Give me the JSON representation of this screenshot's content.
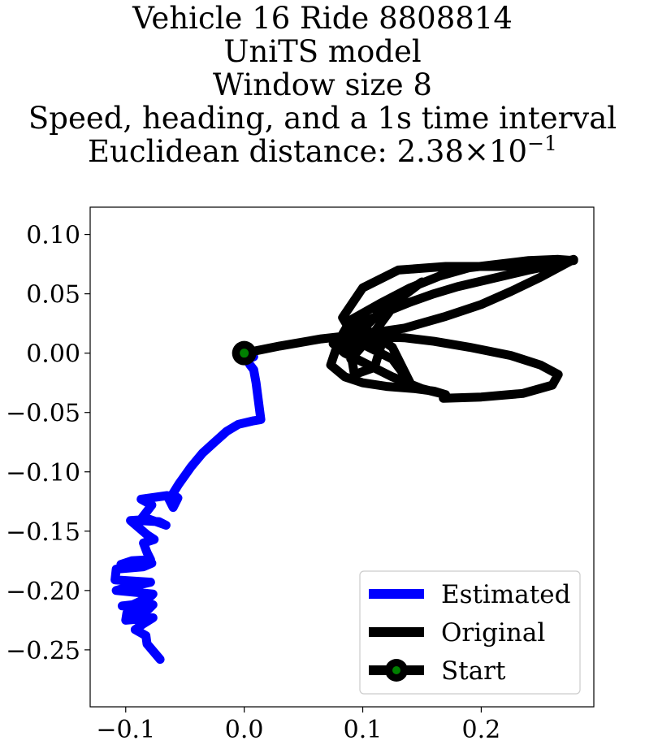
{
  "chart_data": {
    "type": "line",
    "title": {
      "line1": "Vehicle 16 Ride 8808814",
      "line2": "UniTS model",
      "line3": "Window size 8",
      "line4": "Speed, heading, and a 1s time interval",
      "line5_prefix": "Euclidean distance: 2.38",
      "line5_times": "×",
      "line5_base": "10",
      "line5_exponent": "−1"
    },
    "xlim": [
      -0.13,
      0.295
    ],
    "ylim": [
      -0.298,
      0.123
    ],
    "xticks": [
      {
        "value": -0.1,
        "label": "−0.1"
      },
      {
        "value": 0.0,
        "label": "0.0"
      },
      {
        "value": 0.1,
        "label": "0.1"
      },
      {
        "value": 0.2,
        "label": "0.2"
      }
    ],
    "yticks": [
      {
        "value": 0.1,
        "label": "0.10"
      },
      {
        "value": 0.05,
        "label": "0.05"
      },
      {
        "value": 0.0,
        "label": "0.00"
      },
      {
        "value": -0.05,
        "label": "−0.05"
      },
      {
        "value": -0.1,
        "label": "−0.10"
      },
      {
        "value": -0.15,
        "label": "−0.15"
      },
      {
        "value": -0.2,
        "label": "−0.20"
      },
      {
        "value": -0.25,
        "label": "−0.25"
      }
    ],
    "grid": false,
    "legend_position": "bottom-right",
    "series": [
      {
        "name": "Estimated",
        "color": "#0000ff",
        "x": [
          0.0,
          0.008,
          0.002,
          0.005,
          0.008,
          0.01,
          0.014,
          0.008,
          -0.005,
          -0.015,
          -0.025,
          -0.035,
          -0.045,
          -0.055,
          -0.06,
          -0.063,
          -0.059,
          -0.056,
          -0.06,
          -0.065,
          -0.087,
          -0.078,
          -0.088,
          -0.072,
          -0.066,
          -0.08,
          -0.096,
          -0.082,
          -0.076,
          -0.085,
          -0.082,
          -0.079,
          -0.095,
          -0.104,
          -0.078,
          -0.085,
          -0.108,
          -0.109,
          -0.079,
          -0.101,
          -0.108,
          -0.077,
          -0.079,
          -0.094,
          -0.103,
          -0.077,
          -0.081,
          -0.099,
          -0.1,
          -0.077,
          -0.085,
          -0.092,
          -0.083,
          -0.082,
          -0.071
        ],
        "y": [
          0.0,
          -0.003,
          -0.005,
          -0.01,
          -0.014,
          -0.025,
          -0.056,
          -0.057,
          -0.06,
          -0.066,
          -0.075,
          -0.084,
          -0.096,
          -0.11,
          -0.118,
          -0.124,
          -0.12,
          -0.122,
          -0.13,
          -0.12,
          -0.123,
          -0.128,
          -0.141,
          -0.142,
          -0.145,
          -0.14,
          -0.141,
          -0.153,
          -0.157,
          -0.16,
          -0.168,
          -0.174,
          -0.175,
          -0.178,
          -0.177,
          -0.18,
          -0.182,
          -0.191,
          -0.193,
          -0.198,
          -0.2,
          -0.203,
          -0.205,
          -0.212,
          -0.213,
          -0.212,
          -0.216,
          -0.219,
          -0.225,
          -0.223,
          -0.228,
          -0.233,
          -0.238,
          -0.245,
          -0.258
        ]
      },
      {
        "name": "Original",
        "color": "#000000",
        "x": [
          0.0,
          0.03,
          0.065,
          0.1,
          0.135,
          0.17,
          0.2,
          0.225,
          0.25,
          0.278,
          0.265,
          0.24,
          0.21,
          0.18,
          0.16,
          0.14,
          0.12,
          0.105,
          0.092,
          0.083,
          0.09,
          0.115,
          0.14,
          0.165,
          0.19,
          0.215,
          0.24,
          0.265,
          0.278,
          0.255,
          0.215,
          0.17,
          0.13,
          0.1,
          0.083,
          0.095,
          0.125,
          0.14,
          0.125,
          0.1,
          0.085,
          0.09,
          0.11,
          0.13,
          0.15,
          0.12,
          0.1,
          0.09,
          0.093,
          0.11,
          0.115,
          0.1,
          0.078,
          0.073,
          0.085,
          0.1,
          0.12,
          0.145,
          0.16,
          0.17,
          0.15,
          0.125,
          0.105,
          0.085,
          0.075,
          0.08,
          0.09,
          0.11,
          0.135,
          0.16,
          0.19,
          0.225,
          0.25,
          0.265,
          0.26,
          0.235,
          0.2,
          0.168
        ],
        "y": [
          0.0,
          0.006,
          0.012,
          0.016,
          0.021,
          0.031,
          0.041,
          0.052,
          0.064,
          0.079,
          0.075,
          0.07,
          0.063,
          0.056,
          0.05,
          0.043,
          0.035,
          0.028,
          0.022,
          0.016,
          0.028,
          0.042,
          0.055,
          0.065,
          0.072,
          0.075,
          0.078,
          0.079,
          0.078,
          0.075,
          0.073,
          0.073,
          0.07,
          0.055,
          0.03,
          0.01,
          -0.005,
          -0.025,
          0.005,
          0.022,
          0.012,
          -0.005,
          0.018,
          0.045,
          0.06,
          0.04,
          0.02,
          0.0,
          -0.018,
          -0.012,
          0.005,
          0.01,
          0.005,
          -0.01,
          -0.02,
          -0.025,
          -0.028,
          -0.03,
          -0.032,
          -0.035,
          -0.03,
          -0.02,
          -0.01,
          0.0,
          0.008,
          0.012,
          0.013,
          0.014,
          0.013,
          0.01,
          0.005,
          -0.002,
          -0.01,
          -0.018,
          -0.027,
          -0.034,
          -0.037,
          -0.038
        ]
      },
      {
        "name": "Start",
        "color": "#000000",
        "marker_fill": "#008000",
        "x": [
          0.0
        ],
        "y": [
          0.0
        ]
      }
    ]
  }
}
